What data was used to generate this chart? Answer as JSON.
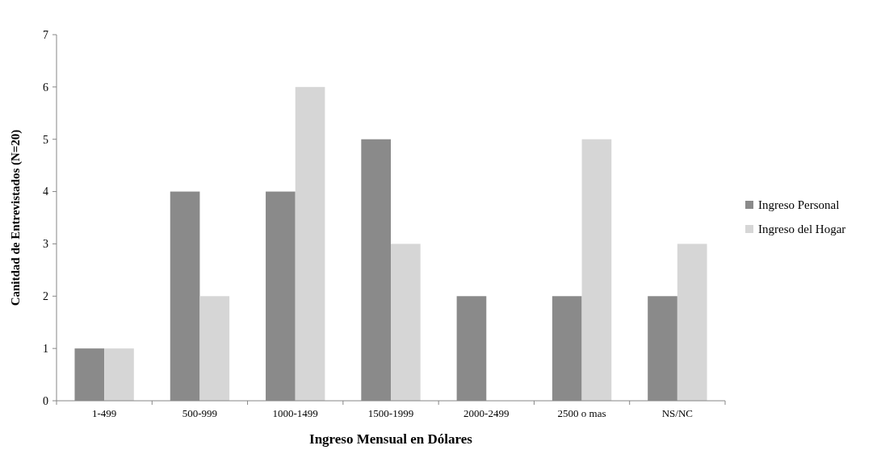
{
  "chart_data": {
    "type": "bar",
    "xlabel": "Ingreso Mensual en Dólares",
    "ylabel": "Canitdad de Entrevistados (N=20)",
    "categories": [
      "1-499",
      "500-999",
      "1000-1499",
      "1500-1999",
      "2000-2499",
      "2500 o mas",
      "NS/NC"
    ],
    "series": [
      {
        "name": "Ingreso Personal",
        "color": "#8a8a8a",
        "values": [
          1,
          4,
          4,
          5,
          2,
          2,
          2
        ]
      },
      {
        "name": "Ingreso del Hogar",
        "color": "#d6d6d6",
        "values": [
          1,
          2,
          6,
          3,
          0,
          5,
          3
        ]
      }
    ],
    "ylim": [
      0,
      7
    ],
    "yticks": [
      0,
      1,
      2,
      3,
      4,
      5,
      6,
      7
    ],
    "legend": "right",
    "grid": false
  }
}
